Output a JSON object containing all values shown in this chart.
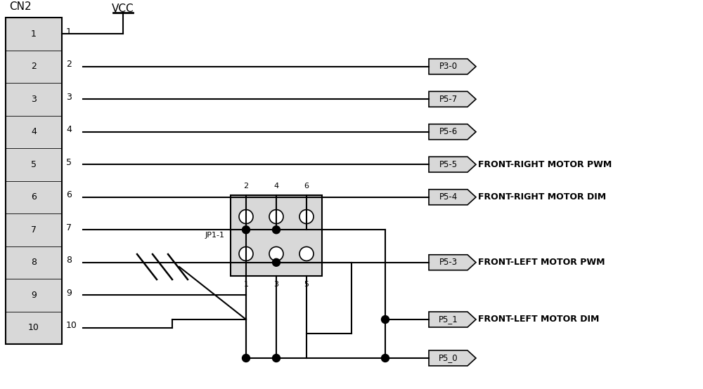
{
  "background_color": "#ffffff",
  "cn2_label": "CN2",
  "vcc_label": "VCC",
  "jp1_label": "JP1-1",
  "jp1_pins_top": [
    "2",
    "4",
    "6"
  ],
  "jp1_pins_bottom": [
    "1",
    "3",
    "5"
  ],
  "signal_direct": [
    {
      "pin": 2,
      "label": "P3-0",
      "note": ""
    },
    {
      "pin": 3,
      "label": "P5-7",
      "note": ""
    },
    {
      "pin": 4,
      "label": "P5-6",
      "note": ""
    },
    {
      "pin": 5,
      "label": "P5-5",
      "note": "FRONT-RIGHT MOTOR PWM"
    },
    {
      "pin": 6,
      "label": "P5-4",
      "note": "FRONT-RIGHT MOTOR DIM"
    }
  ],
  "p53_label": "P5-3",
  "p53_note": "FRONT-LEFT MOTOR PWM",
  "p51_label": "P5_1",
  "p51_note": "FRONT-LEFT MOTOR DIM",
  "p50_label": "P5_0"
}
